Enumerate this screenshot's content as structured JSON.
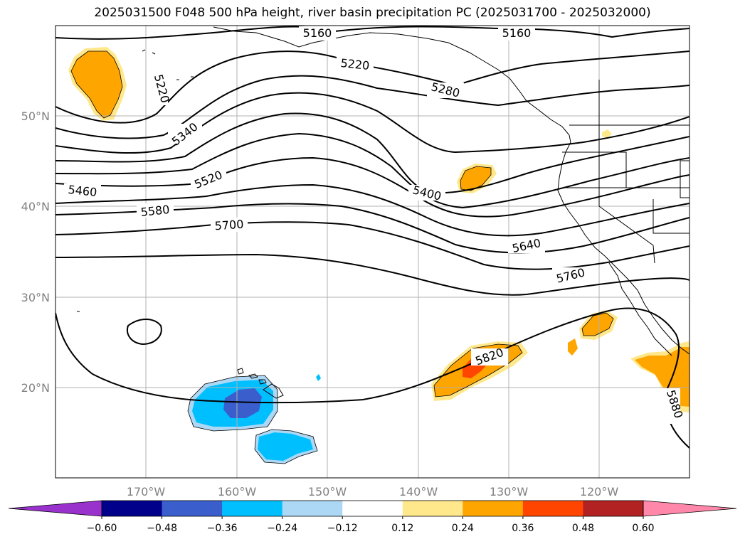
{
  "title": "2025031500 F048 500 hPa height, river basin precipitation PC (2025031700 - 2025032000)",
  "longitude_labels": [
    "170°W",
    "160°W",
    "150°W",
    "140°W",
    "130°W",
    "120°W"
  ],
  "latitude_labels": [
    "50°N",
    "40°N",
    "30°N",
    "20°N"
  ],
  "contour_labels": [
    "5160",
    "5160",
    "5220",
    "5220",
    "5280",
    "5340",
    "5400",
    "5460",
    "5520",
    "5580",
    "5640",
    "5700",
    "5760",
    "5820",
    "5880"
  ],
  "colorbar": {
    "tick_labels": [
      "−0.60",
      "−0.48",
      "−0.36",
      "−0.24",
      "−0.12",
      "0.12",
      "0.24",
      "0.36",
      "0.48",
      "0.60"
    ],
    "colors": [
      "#9932cc",
      "#00008b",
      "#3a5fcd",
      "#00bfff",
      "#add8f5",
      "#ffffff",
      "#ffe88c",
      "#ffa500",
      "#ff4500",
      "#b22222",
      "#ff88aa"
    ]
  },
  "precip_colors": {
    "neg_light": "#add8f5",
    "neg_mid": "#00bfff",
    "neg_strong": "#3a5fcd",
    "pos_light": "#ffe88c",
    "pos_mid": "#ffa500",
    "pos_strong": "#ff4500"
  }
}
